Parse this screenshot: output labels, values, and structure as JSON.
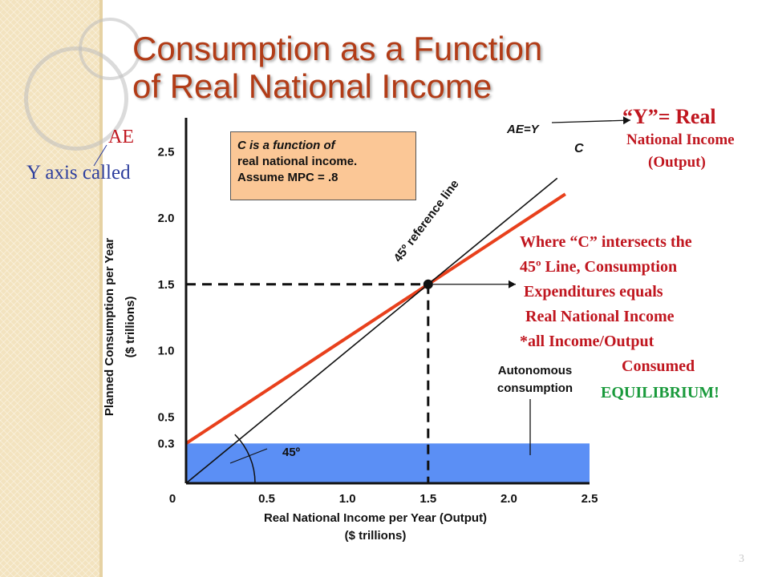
{
  "slide": {
    "title_lines": [
      "Consumption as a Function",
      "of Real National Income"
    ],
    "page_number": "3"
  },
  "annotations": {
    "ae_label": "AE",
    "y_axis_called": "Y axis called",
    "y_equals_lines": [
      "“Y”= Real",
      "National Income",
      "(Output)"
    ],
    "intersection_lines": [
      "Where “C” intersects the",
      "45º Line, Consumption",
      "Expenditures equals",
      "Real National Income",
      "*all Income/Output",
      "Consumed"
    ],
    "equilibrium": "EQUILIBRIUM!",
    "autonomous_lines": [
      "Autonomous",
      "consumption"
    ]
  },
  "note_box": {
    "lines": [
      "C is a function of",
      "real national income.",
      "Assume MPC = .8"
    ]
  },
  "colors": {
    "title": "#b23c17",
    "consumption_line": "#e8401c",
    "reference_line": "#111111",
    "autonomous_fill": "#5b8ff5",
    "annotation_red": "#c0161f",
    "annotation_green": "#1a9a3c",
    "annotation_blue": "#2e3f9e",
    "note_fill": "#fbc796"
  },
  "chart_data": {
    "type": "line",
    "xlabel": "Real National Income per Year (Output)",
    "xlabel_unit": "($ trillions)",
    "ylabel": "Planned Consumption per Year",
    "ylabel_unit": "($ trillions)",
    "x_ticks": [
      0,
      0.5,
      1.0,
      1.5,
      2.0,
      2.5
    ],
    "x_tick_labels": [
      "0",
      "0.5",
      "1.0",
      "1.5",
      "2.0",
      "2.5"
    ],
    "y_ticks": [
      0.3,
      0.5,
      1.0,
      1.5,
      2.0,
      2.5
    ],
    "y_tick_labels": [
      "0.3",
      "0.5",
      "1.0",
      "1.5",
      "2.0",
      "2.5"
    ],
    "xlim": [
      0,
      2.5
    ],
    "ylim": [
      0,
      2.75
    ],
    "series": [
      {
        "name": "C",
        "intercept": 0.3,
        "slope": 0.8,
        "x": [
          0,
          2.35
        ],
        "color": "#e8401c"
      },
      {
        "name": "AE=Y",
        "intercept": 0,
        "slope": 1,
        "x": [
          0,
          2.3
        ],
        "color": "#111111"
      }
    ],
    "reference_line_label": "45º reference line",
    "angle_label": "45º",
    "equilibrium_point": {
      "x": 1.5,
      "y": 1.5
    },
    "autonomous_consumption": 0.3
  }
}
